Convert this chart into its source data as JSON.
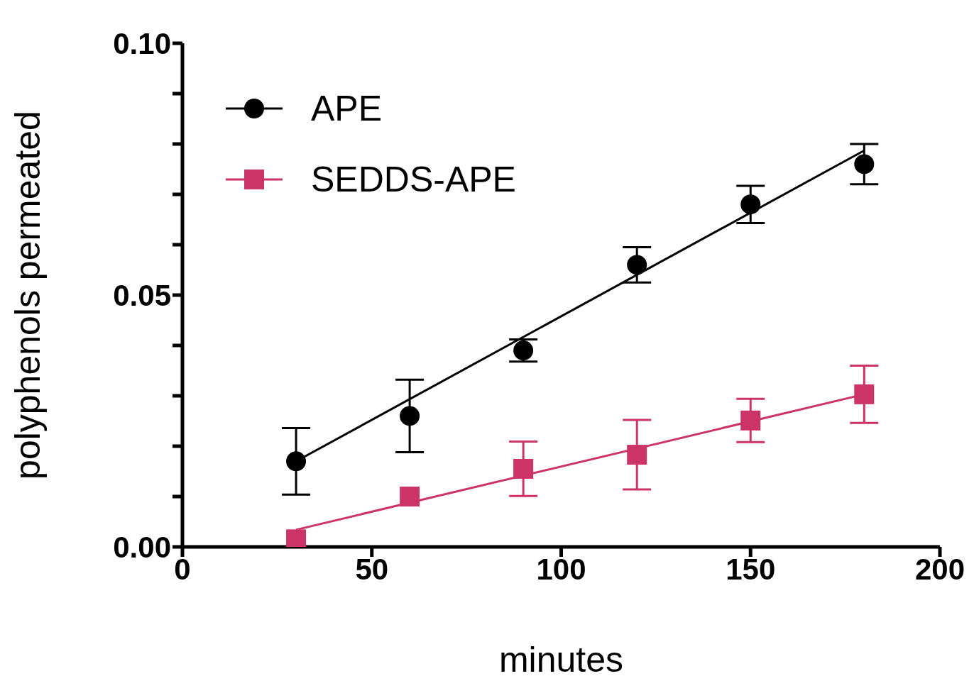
{
  "chart_data": {
    "type": "scatter",
    "xlabel": "minutes",
    "ylabel": "polyphenols permeated",
    "xlim": [
      0,
      200
    ],
    "xticks": [
      0,
      50,
      100,
      150,
      200
    ],
    "ylim": [
      0,
      0.1
    ],
    "yticks": [
      {
        "value": 0,
        "label": "0.00"
      },
      {
        "value": 0.01,
        "label": null
      },
      {
        "value": 0.02,
        "label": null
      },
      {
        "value": 0.03,
        "label": null
      },
      {
        "value": 0.04,
        "label": null
      },
      {
        "value": 0.05,
        "label": "0.05"
      },
      {
        "value": 0.06,
        "label": null
      },
      {
        "value": 0.07,
        "label": null
      },
      {
        "value": 0.08,
        "label": null
      },
      {
        "value": 0.09,
        "label": null
      },
      {
        "value": 0.1,
        "label": "0.10"
      }
    ],
    "legend": "top left",
    "series": [
      {
        "name": "APE",
        "marker": "circle",
        "color": "#000000",
        "x": [
          30,
          60,
          90,
          120,
          150,
          180
        ],
        "values": [
          0.017,
          0.026,
          0.039,
          0.056,
          0.068,
          0.076
        ],
        "errors": [
          0.0066,
          0.0072,
          0.0022,
          0.0035,
          0.0037,
          0.004
        ]
      },
      {
        "name": "SEDDS-APE",
        "marker": "square",
        "color": "#cc3366",
        "x": [
          30,
          60,
          90,
          120,
          150,
          180
        ],
        "values": [
          0.0015,
          0.01,
          0.0155,
          0.0183,
          0.0251,
          0.0303
        ],
        "errors": [
          null,
          null,
          0.0054,
          0.0069,
          0.0043,
          0.0057
        ]
      },
      {
        "type": "line",
        "color": "#000000",
        "x": [
          30,
          180
        ],
        "values": [
          0.017,
          0.0787
        ]
      },
      {
        "type": "line",
        "color": "#cc3366",
        "x": [
          30,
          180
        ],
        "values": [
          0.0034,
          0.0303
        ]
      }
    ]
  }
}
